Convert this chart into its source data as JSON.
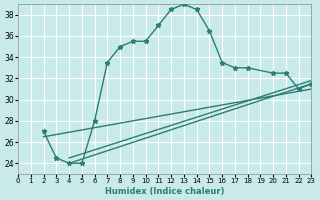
{
  "xlabel": "Humidex (Indice chaleur)",
  "bg_color": "#c8eaea",
  "line_color": "#2e7d72",
  "grid_color": "#ffffff",
  "xlim": [
    0,
    23
  ],
  "ylim": [
    23,
    39
  ],
  "xticks": [
    0,
    1,
    2,
    3,
    4,
    5,
    6,
    7,
    8,
    9,
    10,
    11,
    12,
    13,
    14,
    15,
    16,
    17,
    18,
    19,
    20,
    21,
    22,
    23
  ],
  "yticks": [
    24,
    26,
    28,
    30,
    32,
    34,
    36,
    38
  ],
  "curve1_x": [
    2,
    3,
    4,
    5,
    6,
    7,
    8,
    9,
    10,
    11,
    12,
    13,
    14,
    15,
    16,
    17,
    18,
    20,
    21,
    22,
    23
  ],
  "curve1_y": [
    27,
    24.5,
    24,
    24,
    28,
    33.5,
    35,
    35.5,
    35.5,
    37,
    38.5,
    39,
    38.5,
    36.5,
    33.5,
    33,
    33,
    32.5,
    32.5,
    31,
    31.5
  ],
  "line2_x": [
    2,
    23
  ],
  "line2_y": [
    26.5,
    31
  ],
  "line3_x": [
    4,
    23
  ],
  "line3_y": [
    24,
    31.5
  ],
  "line4_x": [
    4,
    23
  ],
  "line4_y": [
    24.5,
    31.8
  ]
}
